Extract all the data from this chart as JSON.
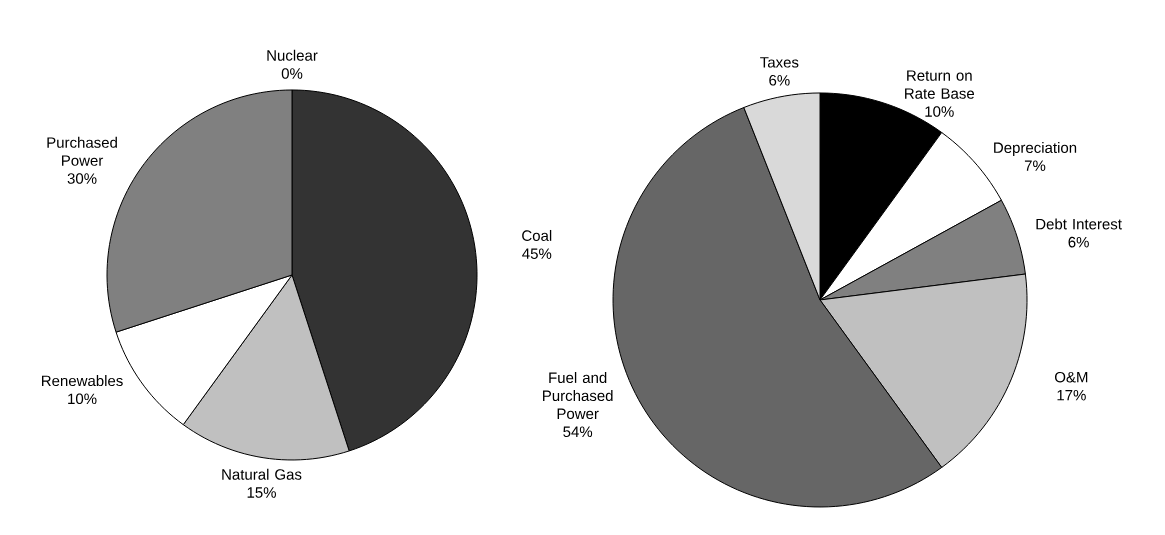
{
  "chart_data": [
    {
      "type": "pie",
      "categories": [
        "Coal",
        "Natural Gas",
        "Renewables",
        "Purchased Power",
        "Nuclear"
      ],
      "values": [
        45,
        15,
        10,
        30,
        0
      ],
      "value_labels": [
        "45%",
        "15%",
        "10%",
        "30%",
        "0%"
      ],
      "colors": [
        "#333333",
        "#c0c0c0",
        "#ffffff",
        "#808080",
        "#000000"
      ]
    },
    {
      "type": "pie",
      "categories": [
        "Return on Rate Base",
        "Depreciation",
        "Debt Interest",
        "O&M",
        "Fuel and Purchased Power",
        "Taxes"
      ],
      "values": [
        10,
        7,
        6,
        17,
        54,
        6
      ],
      "value_labels": [
        "10%",
        "7%",
        "6%",
        "17%",
        "54%",
        "6%"
      ],
      "colors": [
        "#000000",
        "#ffffff",
        "#808080",
        "#c0c0c0",
        "#666666",
        "#d9d9d9"
      ]
    }
  ]
}
